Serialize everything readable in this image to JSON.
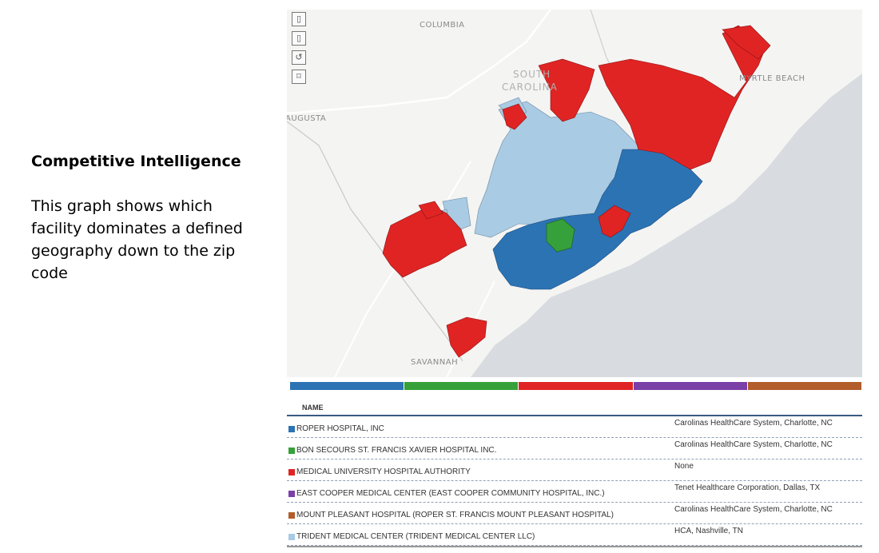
{
  "slide": {
    "heading": "Competitive Intelligence",
    "description": "This graph shows which facility dominates a defined geography down to the zip code"
  },
  "map": {
    "controls": [
      {
        "icon": "zoom-in-icon",
        "glyph": "▯"
      },
      {
        "icon": "zoom-out-icon",
        "glyph": "▯"
      },
      {
        "icon": "reset-icon",
        "glyph": "↺"
      },
      {
        "icon": "select-icon",
        "glyph": "⌑"
      }
    ],
    "city_labels": {
      "columbia": "COLUMBIA",
      "south_carolina_line1": "SOUTH",
      "south_carolina_line2": "CAROLINA",
      "myrtle_beach": "MYRTLE BEACH",
      "augusta": "AUGUSTA",
      "savannah": "SAVANNAH"
    },
    "colors": {
      "land": "#f4f4f3",
      "water": "#d8dce0",
      "road": "#ffffff",
      "border": "#c8c8c8"
    }
  },
  "legend_colors": [
    "#2c73b4",
    "#36a13a",
    "#e02424",
    "#7b3fa8",
    "#b25d2b"
  ],
  "table": {
    "header_name": "NAME",
    "rows": [
      {
        "name": "ROPER HOSPITAL, INC",
        "system": "Carolinas HealthCare System, Charlotte, NC",
        "color": "#2c73b4"
      },
      {
        "name": "BON SECOURS ST. FRANCIS XAVIER HOSPITAL INC.",
        "system": "Carolinas HealthCare System, Charlotte, NC",
        "color": "#36a13a"
      },
      {
        "name": "MEDICAL UNIVERSITY HOSPITAL AUTHORITY",
        "system": "None",
        "color": "#e02424"
      },
      {
        "name": "EAST COOPER MEDICAL CENTER (EAST COOPER COMMUNITY HOSPITAL, INC.)",
        "system": "Tenet Healthcare Corporation, Dallas, TX",
        "color": "#7b3fa8"
      },
      {
        "name": "MOUNT PLEASANT HOSPITAL (ROPER ST. FRANCIS MOUNT PLEASANT HOSPITAL)",
        "system": "Carolinas HealthCare System, Charlotte, NC",
        "color": "#b25d2b"
      },
      {
        "name": "TRIDENT MEDICAL CENTER (TRIDENT MEDICAL CENTER LLC)",
        "system": "HCA, Nashville, TN",
        "color": "#a9cbe3"
      }
    ]
  }
}
